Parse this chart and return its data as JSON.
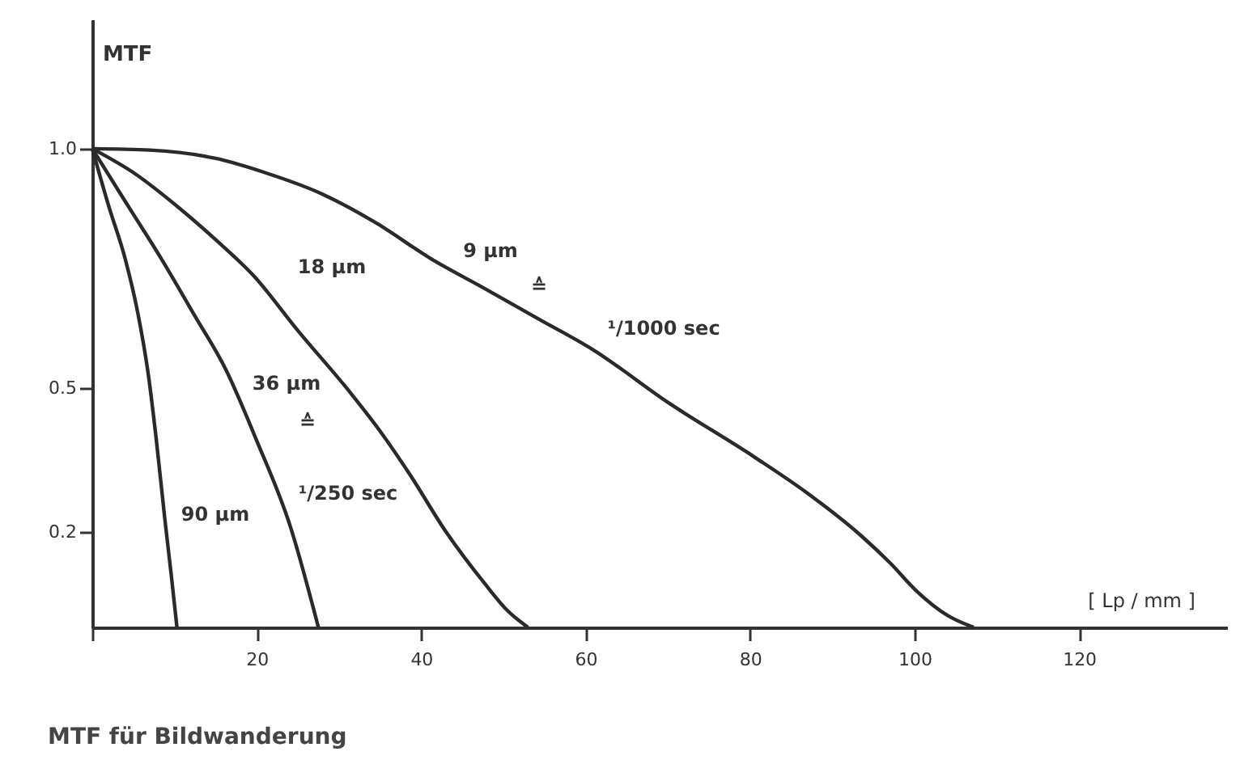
{
  "chart_data": {
    "type": "line",
    "title": "MTF für Bildwanderung",
    "xlabel": "[ Lp / mm ]",
    "ylabel": "MTF",
    "xlim": [
      0,
      138
    ],
    "ylim": [
      0,
      1.27
    ],
    "xticks": [
      {
        "value": 0,
        "label": null
      },
      20,
      40,
      60,
      80,
      100,
      120
    ],
    "yticks": [
      0.2,
      0.5,
      {
        "value": 1,
        "label": "1.0"
      }
    ],
    "grid": false,
    "marker": "none",
    "line_style": "solid",
    "series": [
      {
        "color": "#2a2a2a",
        "x": [
          0,
          2,
          4,
          5.5,
          6.8,
          7.8,
          8.8,
          9.6,
          10.3
        ],
        "values": [
          1,
          0.88,
          0.77,
          0.66,
          0.53,
          0.39,
          0.23,
          0.11,
          0
        ]
      },
      {
        "color": "#2a2a2a",
        "x": [
          0,
          4,
          8.4,
          12.5,
          16.2,
          20,
          24.1,
          27.5
        ],
        "values": [
          1,
          0.89,
          0.77,
          0.65,
          0.54,
          0.39,
          0.21,
          0
        ]
      },
      {
        "color": "#2a2a2a",
        "x": [
          0,
          5,
          10.3,
          15,
          19.6,
          25,
          31.4,
          35,
          38.6,
          43,
          47.8,
          50.5,
          53
        ],
        "values": [
          1,
          0.95,
          0.88,
          0.81,
          0.735,
          0.62,
          0.49,
          0.41,
          0.32,
          0.2,
          0.09,
          0.035,
          0
        ]
      },
      {
        "color": "#2a2a2a",
        "x": [
          0,
          7,
          14.9,
          21,
          28,
          34.5,
          41.2,
          47.5,
          54.2,
          60.9,
          70,
          80.6,
          87,
          93.6,
          97,
          100.3,
          104,
          107.2
        ],
        "values": [
          1,
          0.997,
          0.98,
          0.95,
          0.905,
          0.845,
          0.77,
          0.71,
          0.645,
          0.58,
          0.47,
          0.355,
          0.28,
          0.19,
          0.135,
          0.075,
          0.025,
          0
        ]
      }
    ],
    "annotations": [
      "90 µm",
      "36 µm",
      "≙",
      "¹/250 sec",
      "18 µm",
      "9 µm",
      "≙",
      "¹/1000 sec"
    ]
  }
}
